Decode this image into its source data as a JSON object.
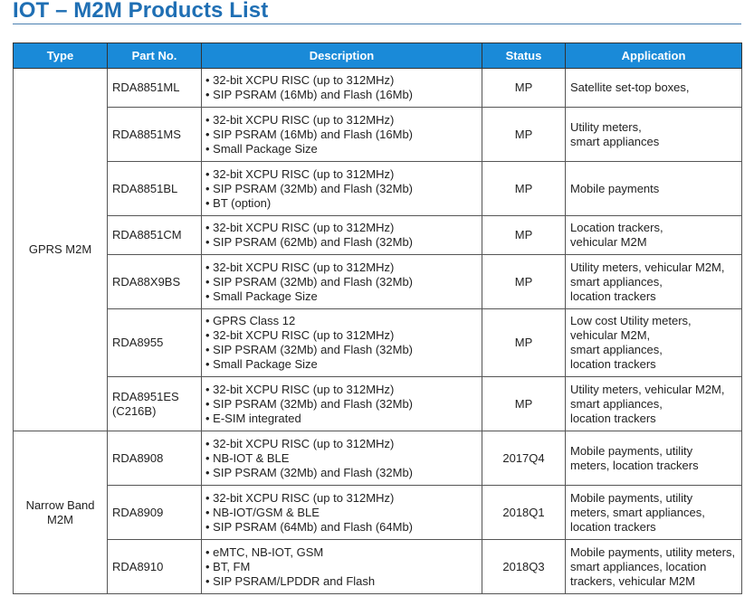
{
  "title": "IOT – M2M Products List",
  "headers": {
    "type": "Type",
    "part": "Part No.",
    "description": "Description",
    "status": "Status",
    "application": "Application"
  },
  "groups": [
    {
      "type": "GPRS M2M",
      "rows": [
        {
          "part": [
            "RDA8851ML"
          ],
          "desc": [
            "• 32-bit XCPU RISC (up to 312MHz)",
            "• SIP PSRAM (16Mb) and Flash (16Mb)"
          ],
          "status": "MP",
          "app": [
            "Satellite set-top boxes,"
          ]
        },
        {
          "part": [
            "RDA8851MS"
          ],
          "desc": [
            "• 32-bit XCPU RISC (up to 312MHz)",
            "• SIP PSRAM (16Mb) and Flash (16Mb)",
            "• Small Package Size"
          ],
          "status": "MP",
          "app": [
            "Utility meters,",
            "smart appliances"
          ]
        },
        {
          "part": [
            "RDA8851BL"
          ],
          "desc": [
            "• 32-bit XCPU RISC (up to 312MHz)",
            "• SIP PSRAM (32Mb) and Flash (32Mb)",
            "• BT (option)"
          ],
          "status": "MP",
          "app": [
            "Mobile payments"
          ]
        },
        {
          "part": [
            "RDA8851CM"
          ],
          "desc": [
            "• 32-bit XCPU RISC (up to 312MHz)",
            "• SIP PSRAM (62Mb) and Flash (32Mb)"
          ],
          "status": "MP",
          "app": [
            "Location trackers,",
            "vehicular M2M"
          ]
        },
        {
          "part": [
            "RDA88X9BS"
          ],
          "desc": [
            "• 32-bit XCPU RISC (up to 312MHz)",
            "• SIP PSRAM (32Mb) and Flash (32Mb)",
            "• Small Package Size"
          ],
          "status": "MP",
          "app": [
            "Utility meters, vehicular M2M,",
            "smart appliances,",
            "location trackers"
          ]
        },
        {
          "part": [
            "RDA8955"
          ],
          "desc": [
            "• GPRS Class 12",
            "• 32-bit XCPU RISC (up to 312MHz)",
            "• SIP PSRAM (32Mb) and Flash (32Mb)",
            "• Small Package Size"
          ],
          "status": "MP",
          "app": [
            "Low cost Utility meters,",
            "vehicular M2M,",
            "smart appliances,",
            "location trackers"
          ]
        },
        {
          "part": [
            "RDA8951ES",
            "(C216B)"
          ],
          "desc": [
            "• 32-bit XCPU RISC (up to 312MHz)",
            "• SIP PSRAM (32Mb) and Flash (32Mb)",
            "• E-SIM integrated"
          ],
          "status": "MP",
          "app": [
            "Utility meters, vehicular M2M,",
            "smart appliances,",
            "location trackers"
          ]
        }
      ]
    },
    {
      "type": "Narrow Band M2M",
      "rows": [
        {
          "part": [
            "RDA8908"
          ],
          "desc": [
            "• 32-bit XCPU RISC (up to 312MHz)",
            "• NB-IOT & BLE",
            "• SIP PSRAM (32Mb) and Flash (32Mb)"
          ],
          "status": "2017Q4",
          "app": [
            "Mobile payments, utility",
            "meters, location trackers"
          ]
        },
        {
          "part": [
            "RDA8909"
          ],
          "desc": [
            "• 32-bit XCPU RISC (up to 312MHz)",
            "• NB-IOT/GSM & BLE",
            "• SIP PSRAM (64Mb) and Flash (64Mb)"
          ],
          "status": "2018Q1",
          "app": [
            "Mobile payments, utility",
            "meters, smart appliances,",
            "location trackers"
          ]
        },
        {
          "part": [
            "RDA8910"
          ],
          "desc": [
            "• eMTC, NB-IOT, GSM",
            "• BT, FM",
            "• SIP PSRAM/LPDDR and Flash"
          ],
          "status": "2018Q3",
          "app": [
            "Mobile payments, utility meters,",
            "smart appliances, location",
            "trackers, vehicular M2M"
          ]
        }
      ]
    }
  ]
}
